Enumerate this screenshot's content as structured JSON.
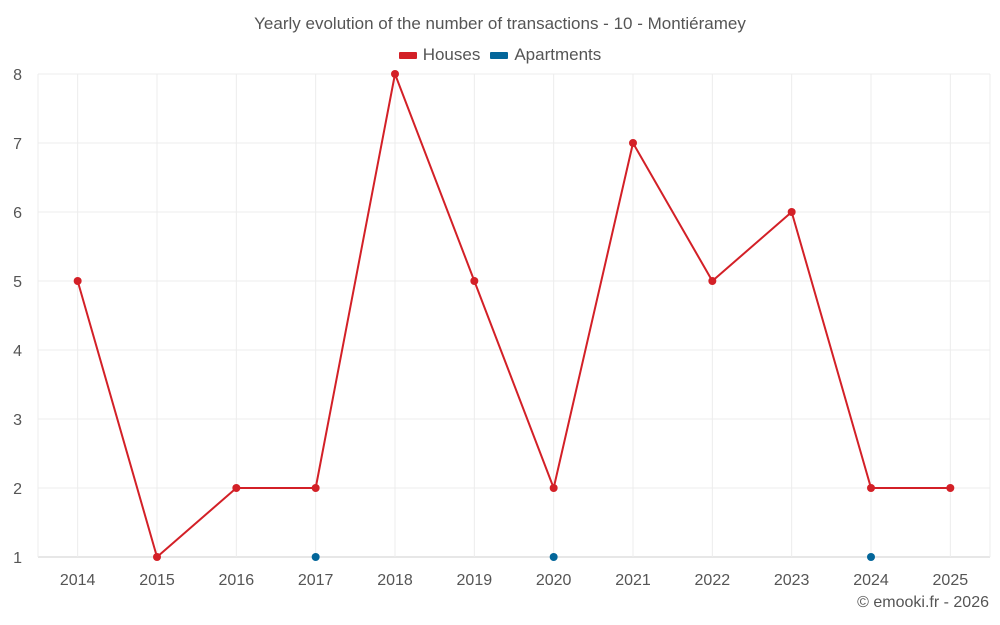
{
  "chart_data": {
    "type": "line",
    "title": "Yearly evolution of the number of transactions - 10 - Montiéramey",
    "x": [
      "2014",
      "2015",
      "2016",
      "2017",
      "2018",
      "2019",
      "2020",
      "2021",
      "2022",
      "2023",
      "2024",
      "2025"
    ],
    "ylim": [
      1,
      8
    ],
    "yticks": [
      "1",
      "2",
      "3",
      "4",
      "5",
      "6",
      "7",
      "8"
    ],
    "series": [
      {
        "name": "Houses",
        "color": "#d32027",
        "values": [
          5,
          1,
          2,
          2,
          8,
          5,
          2,
          7,
          5,
          6,
          2,
          2
        ]
      },
      {
        "name": "Apartments",
        "color": "#03669a",
        "values": [
          null,
          null,
          null,
          1,
          null,
          null,
          1,
          null,
          null,
          null,
          1,
          null
        ]
      }
    ],
    "xlabel": "",
    "ylabel": "",
    "grid": true,
    "legend": "top-center"
  },
  "footer": "© emooki.fr - 2026"
}
